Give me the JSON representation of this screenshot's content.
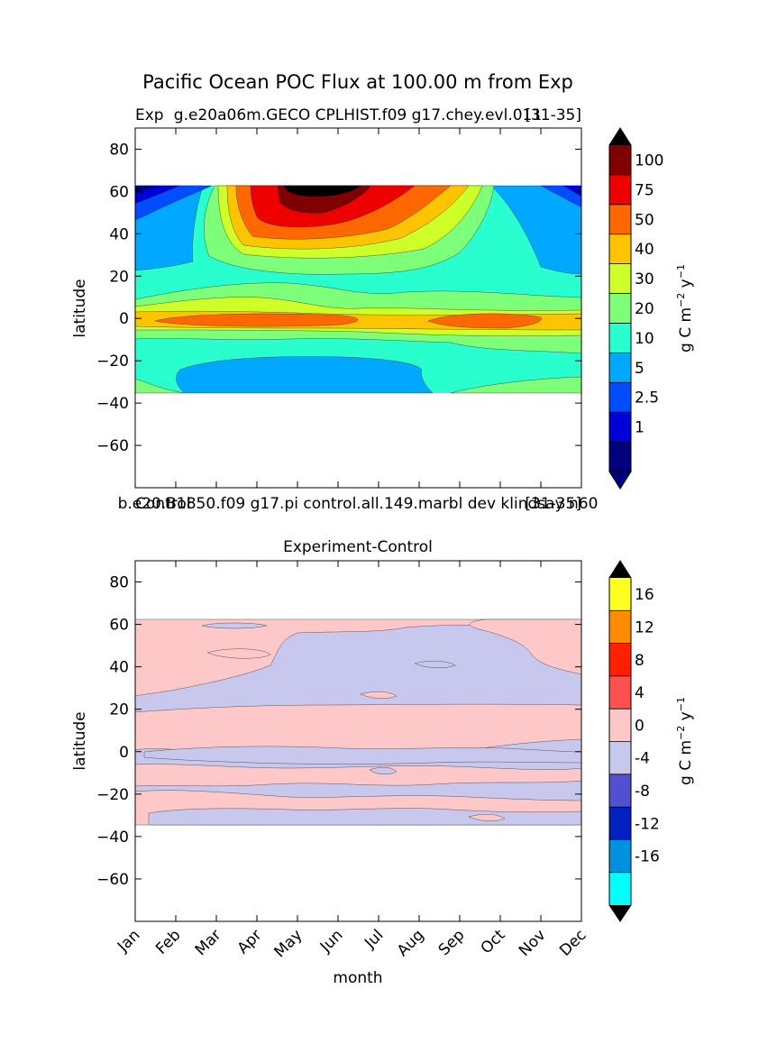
{
  "figure": {
    "title": "Pacific Ocean POC Flux at 100.00 m from Exp"
  },
  "chart_data": [
    {
      "type": "heatmap",
      "title_left": "Exp",
      "title_center": "g.e20a06m.GECO CPLHIST.f09 g17.chey.evl.011",
      "title_right": "[31-35]",
      "xlabel": "",
      "ylabel": "latitude",
      "xlim": [
        0,
        11
      ],
      "ylim": [
        -80,
        90
      ],
      "yticks": [
        "80",
        "60",
        "40",
        "20",
        "0",
        "−20",
        "−40",
        "−60"
      ],
      "data_lat_range": [
        -34,
        63
      ],
      "colorbar": {
        "label": "g C m⁻² y⁻¹",
        "label_base": "g C m",
        "label_exp1": "−2",
        "label_mid": " y",
        "label_exp2": "−1",
        "levels": [
          "1",
          "2.5",
          "5",
          "10",
          "20",
          "30",
          "40",
          "50",
          "75",
          "100"
        ],
        "colors": [
          "#00007f",
          "#0000d9",
          "#004cff",
          "#00a8ff",
          "#29ffce",
          "#7dff7a",
          "#ceff29",
          "#ffc400",
          "#ff6800",
          "#ee0000",
          "#7f0000"
        ],
        "under_color": "#00007f",
        "over_color": "#000000"
      }
    },
    {
      "type": "heatmap",
      "title_left": "Control",
      "title_center": "b.e20.B1850.f09 g17.pi control.all.149.marbl dev klindsay n60",
      "title_right": "[31-35]",
      "subtitle": "Experiment-Control",
      "xlabel": "month",
      "ylabel": "latitude",
      "xlim": [
        0,
        11
      ],
      "ylim": [
        -80,
        90
      ],
      "xticks": [
        "Jan",
        "Feb",
        "Mar",
        "Apr",
        "May",
        "Jun",
        "Jul",
        "Aug",
        "Sep",
        "Oct",
        "Nov",
        "Dec"
      ],
      "yticks": [
        "80",
        "60",
        "40",
        "20",
        "0",
        "−20",
        "−40",
        "−60"
      ],
      "data_lat_range": [
        -34,
        63
      ],
      "colorbar": {
        "label": "g C m⁻² y⁻¹",
        "label_base": "g C m",
        "label_exp1": "−2",
        "label_mid": " y",
        "label_exp2": "−1",
        "levels": [
          "-16",
          "-12",
          "-8",
          "-4",
          "0",
          "4",
          "8",
          "12",
          "16"
        ],
        "colors": [
          "#00ffff",
          "#0090e0",
          "#0020c0",
          "#5050d0",
          "#c8c8ee",
          "#ffc8c8",
          "#ff5050",
          "#ff2000",
          "#ff8c00",
          "#ffff20"
        ],
        "under_color": "#000000",
        "over_color": "#000000"
      }
    }
  ]
}
